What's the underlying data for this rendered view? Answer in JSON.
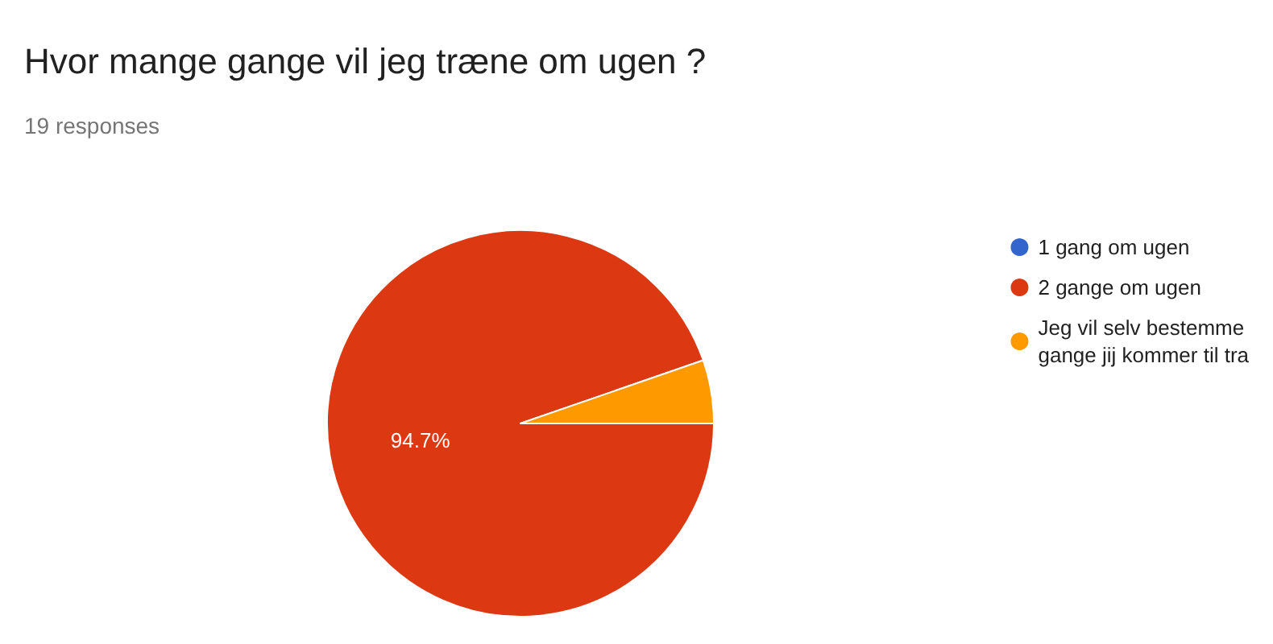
{
  "chart_data": {
    "type": "pie",
    "title": "Hvor mange gange vil jeg træne om ugen ?",
    "subtitle": "19 responses",
    "categories": [
      "1 gang om ugen",
      "2 gange om ugen",
      "Jeg vil selv bestemme\ngange jij kommer til tra"
    ],
    "values": [
      0,
      94.7,
      5.3
    ],
    "colors": [
      "#3366cc",
      "#dc3912",
      "#ff9900"
    ],
    "value_labels": [
      null,
      "94.7%",
      null
    ],
    "legend": "right"
  }
}
